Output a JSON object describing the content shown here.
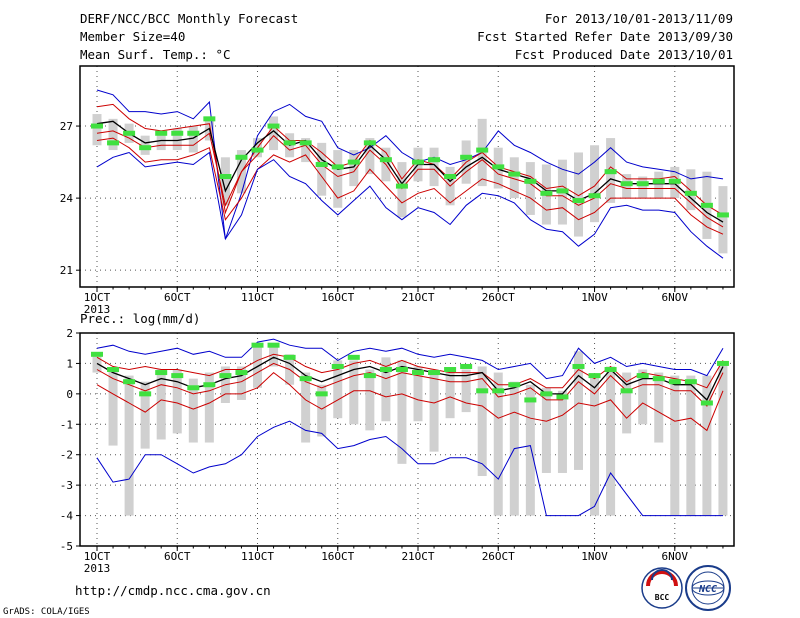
{
  "header": {
    "left_lines": [
      "DERF/NCC/BCC Monthly Forecast",
      "Member Size=40",
      "Mean Surf. Temp.: °C"
    ],
    "right_lines": [
      "For 2013/10/01-2013/11/09",
      "Fcst Started Refer Date 2013/09/30",
      "Fcst Produced Date 2013/10/01"
    ]
  },
  "panel2_label": "Prec.: log(mm/d)",
  "footer": {
    "url": "http://cmdp.ncc.cma.gov.cn",
    "credit": "GrADS: COLA/IGES"
  },
  "logos": {
    "bcc": "BCC",
    "ncc": "NCC"
  },
  "colors": {
    "envelope": "#0000cc",
    "spread": "#cc0000",
    "mean": "#000000",
    "box": "#d0d0d0",
    "median": "#40e040"
  },
  "chart_data": [
    {
      "type": "line",
      "title": "Mean Surf. Temp.: °C",
      "x_ticks": [
        "1OCT",
        "6OCT",
        "11OCT",
        "16OCT",
        "21OCT",
        "26OCT",
        "1NOV",
        "6NOV"
      ],
      "x_ticks_day_index": [
        1,
        6,
        11,
        16,
        21,
        26,
        32,
        37
      ],
      "x_sub_label": "2013",
      "ylim": [
        20.3,
        29.5
      ],
      "yticks": [
        21,
        24,
        27
      ],
      "days": [
        1,
        2,
        3,
        4,
        5,
        6,
        7,
        8,
        9,
        10,
        11,
        12,
        13,
        14,
        15,
        16,
        17,
        18,
        19,
        20,
        21,
        22,
        23,
        24,
        25,
        26,
        27,
        28,
        29,
        30,
        31,
        32,
        33,
        34,
        35,
        36,
        37,
        38,
        39,
        40
      ],
      "series": [
        {
          "values": [
            28.5,
            28.3,
            27.6,
            27.6,
            27.5,
            27.6,
            27.3,
            28.0,
            22.3,
            24.2,
            26.6,
            27.6,
            27.9,
            27.4,
            27.2,
            26.1,
            25.8,
            26.1,
            26.6,
            25.9,
            25.5,
            25.7,
            25.4,
            25.6,
            25.9,
            26.8,
            26.2,
            25.9,
            25.5,
            25.2,
            25.0,
            25.5,
            26.1,
            25.5,
            25.3,
            25.2,
            25.1,
            24.8,
            24.9,
            24.8
          ]
        },
        {
          "values": [
            27.8,
            27.9,
            27.3,
            26.9,
            26.8,
            26.9,
            27.0,
            27.1,
            23.4,
            25.1,
            26.1,
            27.0,
            26.4,
            26.4,
            25.9,
            25.3,
            25.5,
            26.4,
            25.9,
            24.8,
            25.6,
            25.4,
            24.8,
            25.5,
            25.9,
            25.3,
            25.1,
            24.9,
            24.4,
            24.5,
            24.1,
            24.5,
            25.3,
            24.8,
            24.8,
            24.8,
            24.9,
            24.3,
            23.7,
            23.3
          ]
        },
        {
          "values": [
            27.1,
            27.2,
            26.7,
            26.3,
            26.4,
            26.4,
            26.5,
            26.9,
            24.3,
            25.6,
            26.3,
            26.8,
            26.2,
            26.4,
            25.6,
            25.2,
            25.3,
            26.2,
            25.6,
            24.6,
            25.4,
            25.4,
            24.7,
            25.3,
            25.7,
            25.2,
            25.0,
            24.8,
            24.3,
            24.3,
            23.9,
            24.2,
            24.8,
            24.6,
            24.6,
            24.6,
            24.6,
            24.0,
            23.4,
            23.0
          ]
        },
        {
          "values": [
            26.7,
            26.8,
            26.5,
            26.1,
            26.2,
            26.2,
            26.2,
            26.7,
            23.7,
            25.1,
            25.8,
            26.6,
            26.0,
            26.2,
            25.4,
            24.9,
            25.1,
            26.0,
            25.4,
            24.4,
            25.2,
            25.2,
            24.5,
            25.1,
            25.6,
            25.0,
            24.8,
            24.6,
            24.1,
            24.1,
            23.7,
            24.0,
            24.6,
            24.4,
            24.4,
            24.4,
            24.4,
            23.8,
            23.2,
            22.8
          ]
        },
        {
          "values": [
            26.4,
            26.5,
            26.1,
            25.5,
            25.6,
            25.6,
            25.8,
            26.1,
            23.1,
            24.0,
            25.2,
            25.8,
            25.5,
            25.8,
            24.9,
            24.0,
            24.3,
            25.2,
            24.5,
            23.8,
            24.2,
            24.4,
            23.8,
            24.3,
            24.8,
            24.6,
            24.3,
            24.0,
            23.5,
            23.6,
            23.1,
            23.4,
            24.0,
            24.0,
            24.0,
            24.0,
            24.0,
            23.3,
            22.8,
            22.5
          ]
        },
        {
          "values": [
            25.3,
            25.7,
            25.9,
            25.3,
            25.4,
            25.5,
            25.4,
            25.9,
            22.3,
            23.3,
            25.2,
            25.6,
            24.9,
            24.6,
            23.9,
            23.3,
            23.9,
            24.5,
            23.6,
            23.1,
            23.6,
            23.4,
            22.9,
            23.7,
            24.2,
            24.1,
            23.8,
            23.1,
            22.7,
            22.6,
            22.0,
            22.5,
            23.6,
            23.7,
            23.5,
            23.5,
            23.4,
            22.6,
            22.0,
            21.5
          ]
        }
      ],
      "box_ranges": [
        [
          26.2,
          27.5
        ],
        [
          26.0,
          27.3
        ],
        [
          26.3,
          27.1
        ],
        [
          25.8,
          26.6
        ],
        [
          26.0,
          26.8
        ],
        [
          26.0,
          26.9
        ],
        [
          25.9,
          27.0
        ],
        [
          26.4,
          27.4
        ],
        [
          23.7,
          25.7
        ],
        [
          24.2,
          26.0
        ],
        [
          25.7,
          26.5
        ],
        [
          26.0,
          27.4
        ],
        [
          25.7,
          26.7
        ],
        [
          25.5,
          26.5
        ],
        [
          24.1,
          26.3
        ],
        [
          23.6,
          26.0
        ],
        [
          24.5,
          26.0
        ],
        [
          25.0,
          26.5
        ],
        [
          24.7,
          26.1
        ],
        [
          23.2,
          25.5
        ],
        [
          24.7,
          26.1
        ],
        [
          24.5,
          26.1
        ],
        [
          23.7,
          25.3
        ],
        [
          24.6,
          26.4
        ],
        [
          24.5,
          27.3
        ],
        [
          24.4,
          26.1
        ],
        [
          24.0,
          25.7
        ],
        [
          23.3,
          25.5
        ],
        [
          22.9,
          25.4
        ],
        [
          22.9,
          25.6
        ],
        [
          22.4,
          25.9
        ],
        [
          23.0,
          26.2
        ],
        [
          23.8,
          26.5
        ],
        [
          24.0,
          25.0
        ],
        [
          24.0,
          24.9
        ],
        [
          24.0,
          25.1
        ],
        [
          24.0,
          25.3
        ],
        [
          23.5,
          25.2
        ],
        [
          22.3,
          25.1
        ],
        [
          21.7,
          24.5
        ]
      ],
      "medians": [
        27.0,
        26.3,
        26.7,
        26.1,
        26.7,
        26.7,
        26.7,
        27.3,
        24.9,
        25.7,
        26.0,
        27.0,
        26.3,
        26.3,
        25.4,
        25.3,
        25.5,
        26.3,
        25.6,
        24.5,
        25.5,
        25.6,
        24.9,
        25.7,
        26.0,
        25.3,
        25.0,
        24.7,
        24.2,
        24.3,
        23.9,
        24.1,
        25.1,
        24.6,
        24.6,
        24.7,
        24.7,
        24.2,
        23.7,
        23.3
      ]
    },
    {
      "type": "line",
      "title": "Prec.: log(mm/d)",
      "x_ticks": [
        "1OCT",
        "6OCT",
        "11OCT",
        "16OCT",
        "21OCT",
        "26OCT",
        "1NOV",
        "6NOV"
      ],
      "x_ticks_day_index": [
        1,
        6,
        11,
        16,
        21,
        26,
        32,
        37
      ],
      "x_sub_label": "2013",
      "ylim": [
        -5,
        2
      ],
      "yticks": [
        -5,
        -4,
        -3,
        -2,
        -1,
        0,
        1,
        2
      ],
      "days": [
        1,
        2,
        3,
        4,
        5,
        6,
        7,
        8,
        9,
        10,
        11,
        12,
        13,
        14,
        15,
        16,
        17,
        18,
        19,
        20,
        21,
        22,
        23,
        24,
        25,
        26,
        27,
        28,
        29,
        30,
        31,
        32,
        33,
        34,
        35,
        36,
        37,
        38,
        39,
        40
      ],
      "series": [
        {
          "values": [
            1.5,
            1.6,
            1.4,
            1.3,
            1.4,
            1.5,
            1.3,
            1.4,
            1.2,
            1.2,
            1.7,
            1.8,
            1.6,
            1.5,
            1.5,
            1.1,
            1.4,
            1.5,
            1.4,
            1.5,
            1.3,
            1.2,
            1.3,
            1.2,
            1.1,
            0.8,
            0.9,
            1.0,
            0.5,
            0.6,
            1.5,
            1.0,
            1.2,
            0.9,
            1.0,
            0.9,
            0.8,
            0.8,
            0.6,
            1.5
          ]
        },
        {
          "values": [
            1.2,
            0.9,
            0.8,
            0.9,
            0.8,
            0.8,
            0.7,
            0.6,
            0.8,
            0.8,
            1.1,
            1.3,
            1.2,
            0.9,
            0.7,
            0.8,
            1.0,
            1.1,
            0.9,
            1.1,
            0.9,
            0.8,
            0.7,
            0.7,
            0.7,
            0.3,
            0.3,
            0.5,
            0.2,
            0.2,
            0.8,
            0.5,
            0.9,
            0.4,
            0.7,
            0.6,
            0.5,
            0.4,
            0.2,
            1.1
          ]
        },
        {
          "values": [
            1.0,
            0.7,
            0.5,
            0.3,
            0.5,
            0.4,
            0.2,
            0.3,
            0.5,
            0.6,
            0.9,
            1.2,
            1.0,
            0.6,
            0.4,
            0.6,
            0.8,
            0.9,
            0.7,
            0.9,
            0.8,
            0.7,
            0.6,
            0.6,
            0.7,
            0.1,
            0.2,
            0.4,
            0.0,
            0.0,
            0.6,
            0.2,
            0.8,
            0.3,
            0.5,
            0.5,
            0.3,
            0.3,
            -0.2,
            0.9
          ]
        },
        {
          "values": [
            0.8,
            0.5,
            0.3,
            0.1,
            0.3,
            0.2,
            0.0,
            0.1,
            0.3,
            0.4,
            0.7,
            1.0,
            0.8,
            0.4,
            0.2,
            0.4,
            0.6,
            0.7,
            0.5,
            0.7,
            0.6,
            0.5,
            0.4,
            0.4,
            0.5,
            -0.1,
            0.0,
            0.2,
            -0.2,
            -0.2,
            0.4,
            0.0,
            0.6,
            0.1,
            0.3,
            0.3,
            0.1,
            0.1,
            -0.4,
            0.7
          ]
        },
        {
          "values": [
            0.3,
            0.0,
            -0.3,
            -0.6,
            -0.2,
            -0.3,
            -0.5,
            -0.3,
            0.0,
            0.0,
            0.2,
            0.7,
            0.3,
            -0.2,
            -0.5,
            -0.2,
            0.1,
            0.1,
            -0.1,
            0.0,
            -0.2,
            -0.3,
            -0.1,
            -0.3,
            -0.4,
            -0.8,
            -0.6,
            -0.8,
            -0.9,
            -0.7,
            -0.3,
            -0.4,
            -0.2,
            -0.8,
            -0.3,
            -0.6,
            -0.9,
            -0.8,
            -1.2,
            0.1
          ]
        },
        {
          "values": [
            -2.1,
            -2.9,
            -2.8,
            -2.0,
            -2.0,
            -2.3,
            -2.6,
            -2.4,
            -2.3,
            -2.0,
            -1.4,
            -1.1,
            -0.9,
            -1.2,
            -1.3,
            -1.8,
            -1.7,
            -1.5,
            -1.4,
            -1.8,
            -2.3,
            -2.3,
            -2.1,
            -2.1,
            -2.3,
            -2.8,
            -1.8,
            -1.7,
            -4.0,
            -4.0,
            -4.0,
            -3.7,
            -2.6,
            -3.3,
            -4.0,
            -4.0,
            -4.0,
            -4.0,
            -4.0,
            -4.0
          ]
        }
      ],
      "box_ranges": [
        [
          0.7,
          1.3
        ],
        [
          -1.7,
          0.8
        ],
        [
          -4.0,
          0.6
        ],
        [
          -1.8,
          0.4
        ],
        [
          -1.5,
          0.8
        ],
        [
          -1.3,
          0.8
        ],
        [
          -1.6,
          0.5
        ],
        [
          -1.6,
          0.7
        ],
        [
          -0.3,
          0.9
        ],
        [
          -0.2,
          0.9
        ],
        [
          0.2,
          1.6
        ],
        [
          0.9,
          1.6
        ],
        [
          0.3,
          1.3
        ],
        [
          -1.6,
          0.7
        ],
        [
          -1.4,
          0.3
        ],
        [
          -0.8,
          1.1
        ],
        [
          -1.0,
          1.1
        ],
        [
          -1.2,
          0.8
        ],
        [
          -0.9,
          1.2
        ],
        [
          -2.3,
          1.1
        ],
        [
          -0.9,
          0.9
        ],
        [
          -1.9,
          0.8
        ],
        [
          -0.8,
          0.8
        ],
        [
          -0.6,
          0.8
        ],
        [
          -2.7,
          0.9
        ],
        [
          -4.0,
          0.7
        ],
        [
          -4.0,
          0.4
        ],
        [
          -4.0,
          0.3
        ],
        [
          -2.6,
          0.2
        ],
        [
          -2.6,
          0.1
        ],
        [
          -2.5,
          1.4
        ],
        [
          -4.0,
          0.6
        ],
        [
          -4.0,
          0.9
        ],
        [
          -1.3,
          0.7
        ],
        [
          -1.0,
          0.8
        ],
        [
          -1.6,
          0.7
        ],
        [
          -4.0,
          0.6
        ],
        [
          -4.0,
          0.6
        ],
        [
          -4.0,
          0.6
        ],
        [
          -4.0,
          1.0
        ]
      ],
      "medians": [
        1.3,
        0.8,
        0.4,
        0.0,
        0.7,
        0.6,
        0.2,
        0.3,
        0.6,
        0.7,
        1.6,
        1.6,
        1.2,
        0.5,
        0.0,
        0.9,
        1.2,
        0.6,
        0.8,
        0.8,
        0.7,
        0.7,
        0.8,
        0.9,
        0.1,
        0.1,
        0.3,
        -0.2,
        0.0,
        -0.1,
        0.9,
        0.6,
        0.8,
        0.1,
        0.6,
        0.5,
        0.4,
        0.4,
        -0.3,
        1.0
      ]
    }
  ]
}
